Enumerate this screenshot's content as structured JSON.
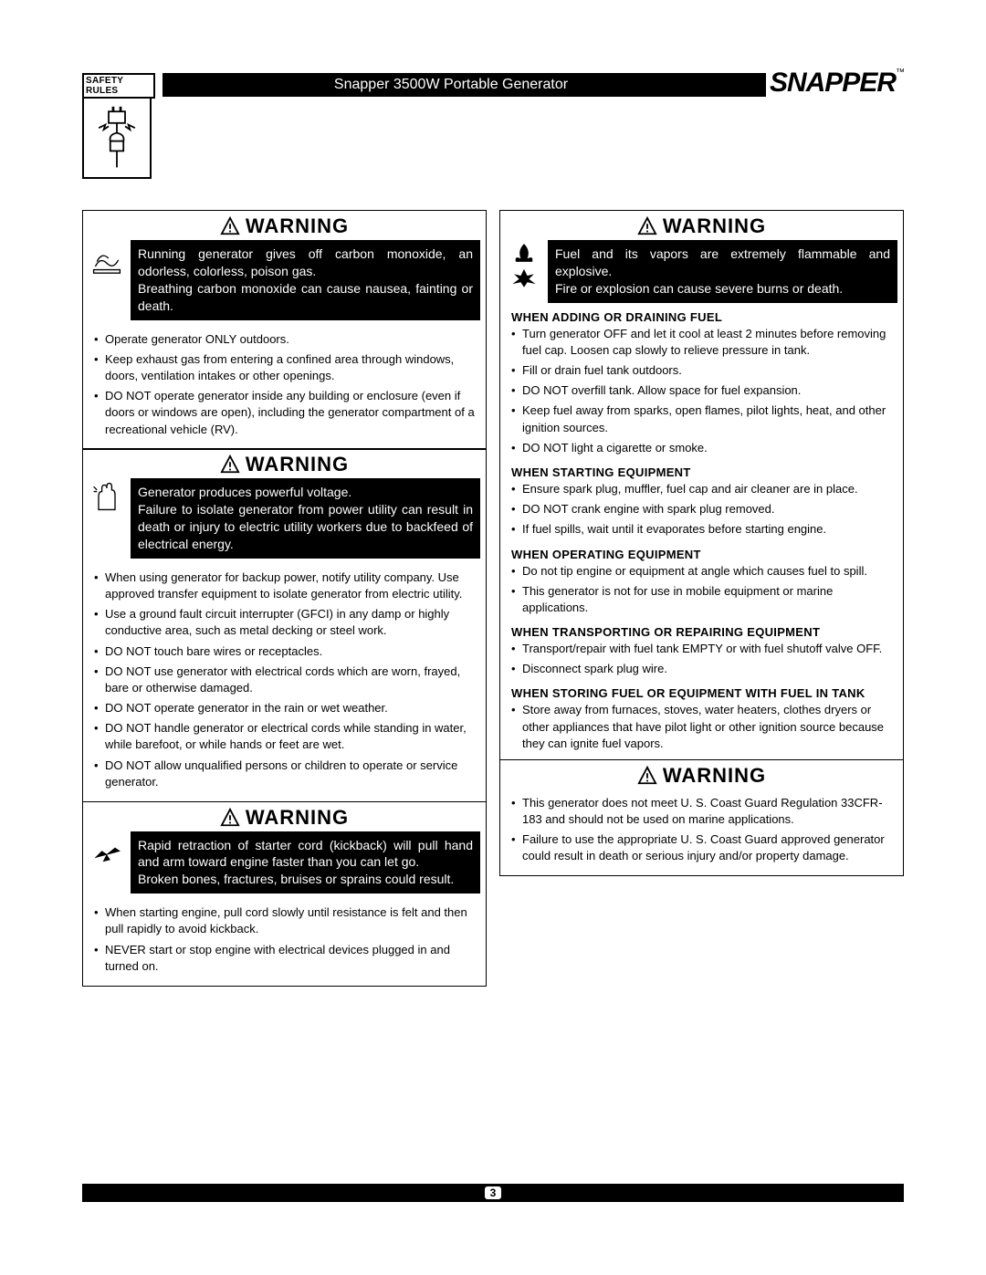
{
  "header": {
    "safety_rules_label": "SAFETY RULES",
    "title": "Snapper 3500W Portable Generator",
    "brand": "SNAPPER",
    "trademark": "™"
  },
  "warning_label": "WARNING",
  "left": {
    "w1": {
      "preamble": "Running generator gives off carbon monoxide, an odorless, colorless, poison gas.\nBreathing carbon monoxide can cause nausea, fainting or death.",
      "bullets": [
        "Operate generator ONLY outdoors.",
        "Keep exhaust gas from entering a confined area through windows, doors, ventilation intakes or other openings.",
        "DO NOT operate generator inside any building or enclosure (even if doors or windows are open), including the generator compartment of a recreational vehicle (RV)."
      ]
    },
    "w2": {
      "preamble": "Generator produces powerful voltage.\nFailure to isolate generator from power utility can result in death or injury to electric utility workers due to backfeed of electrical energy.",
      "bullets": [
        "When using generator for backup power, notify utility company. Use approved transfer equipment to isolate generator from electric utility.",
        "Use a ground fault circuit interrupter (GFCI) in any damp or highly conductive area, such as metal decking or steel work.",
        "DO NOT touch bare wires or receptacles.",
        "DO NOT use generator with electrical cords which are worn, frayed, bare or otherwise damaged.",
        "DO NOT operate generator in the rain or wet weather.",
        "DO NOT handle generator or electrical cords while standing in water, while barefoot, or while hands or feet are wet.",
        "DO NOT allow unqualified persons or children to operate or service generator."
      ]
    },
    "w3": {
      "preamble": "Rapid retraction of starter cord (kickback) will pull hand and arm toward engine faster than you can let go.\nBroken bones, fractures, bruises or sprains could result.",
      "bullets": [
        "When starting engine, pull cord slowly until resistance is felt and then pull rapidly to avoid kickback.",
        "NEVER start or stop engine with electrical devices plugged in and turned on."
      ]
    }
  },
  "right": {
    "w1": {
      "preamble": "Fuel and its vapors are extremely flammable and explosive.\nFire or explosion can cause severe burns or death.",
      "sections": [
        {
          "heading": "When Adding Or Draining Fuel",
          "bullets": [
            "Turn generator OFF and let it cool at least 2 minutes before removing fuel cap. Loosen cap slowly to relieve pressure in tank.",
            "Fill or drain fuel tank outdoors.",
            "DO NOT overfill tank. Allow space for fuel expansion.",
            "Keep fuel away from sparks, open flames, pilot lights, heat, and other ignition sources.",
            "DO NOT light a cigarette or smoke."
          ]
        },
        {
          "heading": "When Starting Equipment",
          "bullets": [
            "Ensure spark plug, muffler, fuel cap and air cleaner are in place.",
            "DO NOT crank engine with spark plug removed.",
            "If fuel spills, wait until it evaporates before starting engine."
          ]
        },
        {
          "heading": "When Operating Equipment",
          "bullets": [
            "Do not tip engine or equipment at angle which causes fuel to spill.",
            "This generator is not for use in mobile equipment or marine applications."
          ]
        },
        {
          "heading": "When Transporting Or Repairing Equipment",
          "bullets": [
            "Transport/repair with fuel tank EMPTY or with fuel shutoff valve OFF.",
            "Disconnect spark plug wire."
          ]
        },
        {
          "heading": "When Storing Fuel Or Equipment With Fuel In Tank",
          "bullets": [
            "Store away from furnaces, stoves, water heaters, clothes dryers or other appliances that have pilot light or other ignition source because they can ignite fuel vapors."
          ]
        }
      ]
    },
    "w2": {
      "bullets": [
        "This generator does not meet U. S. Coast Guard Regulation 33CFR-183 and should not be used on marine applications.",
        "Failure to use the appropriate U. S. Coast Guard approved generator could result in death or serious injury and/or property damage."
      ]
    }
  },
  "page_number": "3"
}
